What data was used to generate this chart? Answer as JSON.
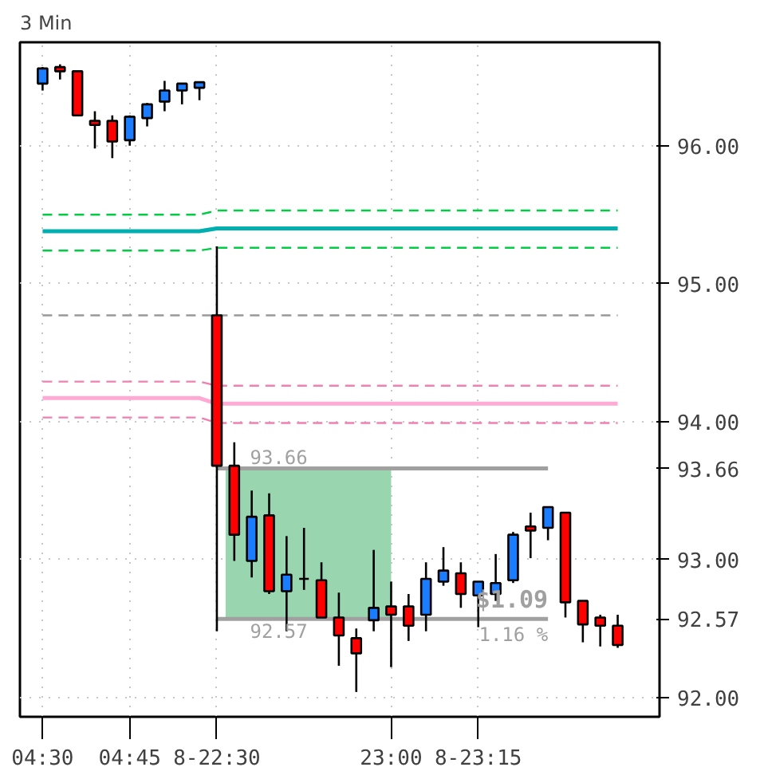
{
  "chart_data": {
    "type": "candlestick",
    "title": "3 Min",
    "categories": [
      "04:30",
      null,
      null,
      null,
      null,
      "04:45",
      null,
      null,
      null,
      null,
      "8-22:30",
      null,
      null,
      null,
      null,
      null,
      null,
      null,
      null,
      null,
      "23:00",
      null,
      null,
      null,
      null,
      "8-23:15",
      null,
      null,
      null,
      null,
      null,
      null,
      null,
      null
    ],
    "ohlc": [
      [
        96.45,
        96.57,
        96.4,
        96.56
      ],
      [
        96.57,
        96.59,
        96.48,
        96.54
      ],
      [
        96.54,
        96.54,
        96.22,
        96.22
      ],
      [
        96.18,
        96.25,
        95.98,
        96.15
      ],
      [
        96.18,
        96.22,
        95.91,
        96.03
      ],
      [
        96.04,
        96.22,
        96.0,
        96.21
      ],
      [
        96.2,
        96.31,
        96.14,
        96.3
      ],
      [
        96.32,
        96.47,
        96.25,
        96.4
      ],
      [
        96.4,
        96.45,
        96.3,
        96.45
      ],
      [
        96.42,
        96.46,
        96.33,
        96.46
      ],
      [
        94.77,
        95.27,
        92.48,
        93.68
      ],
      [
        93.68,
        93.85,
        92.99,
        93.18
      ],
      [
        92.99,
        93.5,
        92.87,
        93.31
      ],
      [
        93.32,
        93.48,
        92.75,
        92.77
      ],
      [
        92.77,
        93.17,
        92.48,
        92.89
      ],
      [
        92.86,
        93.23,
        92.78,
        92.86
      ],
      [
        92.85,
        92.98,
        92.58,
        92.58
      ],
      [
        92.58,
        92.76,
        92.23,
        92.45
      ],
      [
        92.43,
        92.5,
        92.04,
        92.32
      ],
      [
        92.56,
        93.07,
        92.48,
        92.65
      ],
      [
        92.66,
        92.84,
        92.22,
        92.6
      ],
      [
        92.66,
        92.75,
        92.41,
        92.52
      ],
      [
        92.6,
        92.98,
        92.48,
        92.86
      ],
      [
        92.84,
        93.09,
        92.81,
        92.92
      ],
      [
        92.9,
        92.98,
        92.65,
        92.75
      ],
      [
        92.74,
        92.84,
        92.51,
        92.84
      ],
      [
        92.75,
        93.04,
        92.7,
        92.83
      ],
      [
        92.85,
        93.2,
        92.83,
        93.18
      ],
      [
        93.24,
        93.34,
        93.01,
        93.21
      ],
      [
        93.23,
        93.38,
        93.14,
        93.38
      ],
      [
        93.34,
        93.34,
        92.58,
        92.69
      ],
      [
        92.7,
        92.7,
        92.4,
        92.53
      ],
      [
        92.58,
        92.6,
        92.37,
        92.52
      ],
      [
        92.52,
        92.6,
        92.36,
        92.38
      ]
    ],
    "colors": [
      "#1a7cff",
      "#ff0000",
      "#ff0000",
      "#ff0000",
      "#ff0000",
      "#1a7cff",
      "#1a7cff",
      "#1a7cff",
      "#1a7cff",
      "#1a7cff",
      "#ff0000",
      "#ff0000",
      "#1a7cff",
      "#ff0000",
      "#1a7cff",
      "#000000",
      "#ff0000",
      "#ff0000",
      "#ff0000",
      "#1a7cff",
      "#ff0000",
      "#ff0000",
      "#1a7cff",
      "#1a7cff",
      "#ff0000",
      "#1a7cff",
      "#1a7cff",
      "#1a7cff",
      "#ff0000",
      "#1a7cff",
      "#ff0000",
      "#ff0000",
      "#ff0000",
      "#ff0000"
    ],
    "series": [
      {
        "type": "line",
        "color": "#00cc44",
        "line_style": "dashed",
        "values": [
          95.5,
          95.5,
          95.5,
          95.5,
          95.5,
          95.5,
          95.5,
          95.5,
          95.5,
          95.5,
          95.53,
          95.53,
          95.53,
          95.53,
          95.53,
          95.53,
          95.53,
          95.53,
          95.53,
          95.53,
          95.53,
          95.53,
          95.53,
          95.53,
          95.53,
          95.53,
          95.53,
          95.53,
          95.53,
          95.53,
          95.53,
          95.53,
          95.53,
          95.53
        ]
      },
      {
        "type": "line",
        "color": "#00b0b0",
        "line_style": "solid",
        "values": [
          95.38,
          95.38,
          95.38,
          95.38,
          95.38,
          95.38,
          95.38,
          95.38,
          95.38,
          95.38,
          95.4,
          95.4,
          95.4,
          95.4,
          95.4,
          95.4,
          95.4,
          95.4,
          95.4,
          95.4,
          95.4,
          95.4,
          95.4,
          95.4,
          95.4,
          95.4,
          95.4,
          95.4,
          95.4,
          95.4,
          95.4,
          95.4,
          95.4,
          95.4
        ]
      },
      {
        "type": "line",
        "color": "#00cc44",
        "line_style": "dashed",
        "values": [
          95.24,
          95.24,
          95.24,
          95.24,
          95.24,
          95.24,
          95.24,
          95.24,
          95.24,
          95.24,
          95.26,
          95.26,
          95.26,
          95.26,
          95.26,
          95.26,
          95.26,
          95.26,
          95.26,
          95.26,
          95.26,
          95.26,
          95.26,
          95.26,
          95.26,
          95.26,
          95.26,
          95.26,
          95.26,
          95.26,
          95.26,
          95.26,
          95.26,
          95.26
        ]
      },
      {
        "type": "line",
        "color": "#999999",
        "line_style": "dashed",
        "values": [
          94.77,
          94.77,
          94.77,
          94.77,
          94.77,
          94.77,
          94.77,
          94.77,
          94.77,
          94.77,
          94.77,
          94.77,
          94.77,
          94.77,
          94.77,
          94.77,
          94.77,
          94.77,
          94.77,
          94.77,
          94.77,
          94.77,
          94.77,
          94.77,
          94.77,
          94.77,
          94.77,
          94.77,
          94.77,
          94.77,
          94.77,
          94.77,
          94.77,
          94.77
        ]
      },
      {
        "type": "line",
        "color": "#f080b0",
        "line_style": "dashed",
        "values": [
          94.29,
          94.29,
          94.29,
          94.29,
          94.29,
          94.29,
          94.29,
          94.29,
          94.29,
          94.29,
          94.26,
          94.26,
          94.26,
          94.26,
          94.26,
          94.26,
          94.26,
          94.26,
          94.26,
          94.26,
          94.26,
          94.26,
          94.26,
          94.26,
          94.26,
          94.26,
          94.26,
          94.26,
          94.26,
          94.26,
          94.26,
          94.26,
          94.26,
          94.26
        ]
      },
      {
        "type": "line",
        "color": "#ffaad4",
        "line_style": "solid",
        "values": [
          94.17,
          94.17,
          94.17,
          94.17,
          94.17,
          94.17,
          94.17,
          94.17,
          94.17,
          94.17,
          94.13,
          94.13,
          94.13,
          94.13,
          94.13,
          94.13,
          94.13,
          94.13,
          94.13,
          94.13,
          94.13,
          94.13,
          94.13,
          94.13,
          94.13,
          94.13,
          94.13,
          94.13,
          94.13,
          94.13,
          94.13,
          94.13,
          94.13,
          94.13
        ]
      },
      {
        "type": "line",
        "color": "#f080b0",
        "line_style": "dashed",
        "values": [
          94.03,
          94.03,
          94.03,
          94.03,
          94.03,
          94.03,
          94.03,
          94.03,
          94.03,
          94.03,
          93.99,
          93.99,
          93.99,
          93.99,
          93.99,
          93.99,
          93.99,
          93.99,
          93.99,
          93.99,
          93.99,
          93.99,
          93.99,
          93.99,
          93.99,
          93.99,
          93.99,
          93.99,
          93.99,
          93.99,
          93.99,
          93.99,
          93.99,
          93.99
        ]
      },
      {
        "type": "line",
        "color": "#a0a0a0",
        "line_style": "solid",
        "values": [
          null,
          null,
          null,
          null,
          null,
          null,
          null,
          null,
          null,
          null,
          93.66,
          93.66,
          93.66,
          93.66,
          93.66,
          93.66,
          93.66,
          93.66,
          93.66,
          93.66,
          93.66,
          93.66,
          93.66,
          93.66,
          93.66,
          93.66,
          93.66,
          93.66,
          93.66,
          93.66,
          null,
          null,
          null,
          null
        ]
      },
      {
        "type": "line",
        "color": "#a0a0a0",
        "line_style": "solid",
        "values": [
          null,
          null,
          null,
          null,
          null,
          null,
          null,
          null,
          null,
          null,
          92.57,
          92.57,
          92.57,
          92.57,
          92.57,
          92.57,
          92.57,
          92.57,
          92.57,
          92.57,
          92.57,
          92.57,
          92.57,
          92.57,
          92.57,
          92.57,
          92.57,
          92.57,
          92.57,
          92.57,
          null,
          null,
          null,
          null
        ]
      }
    ],
    "annotations": [
      {
        "text": "93.66",
        "y": 93.66
      },
      {
        "text": "92.57",
        "y": 92.57
      },
      {
        "text": "$1.09",
        "y": 92.57
      },
      {
        "text": "1.16 %",
        "y": 92.57
      }
    ],
    "ylim": [
      91.86,
      96.75
    ],
    "yticks": [
      {
        "value": 92,
        "label": "92.00"
      },
      {
        "value": 92.57,
        "label": "92.57"
      },
      {
        "value": 93,
        "label": "93.00"
      },
      {
        "value": 93.66,
        "label": "93.66"
      },
      {
        "value": 94,
        "label": "94.00"
      },
      {
        "value": 95,
        "label": "95.00"
      },
      {
        "value": 96,
        "label": "96.00"
      }
    ],
    "bands": [
      {
        "axis": "y",
        "from": 92.57,
        "to": 93.66,
        "color": "#99d6b0"
      }
    ],
    "grid": true
  }
}
